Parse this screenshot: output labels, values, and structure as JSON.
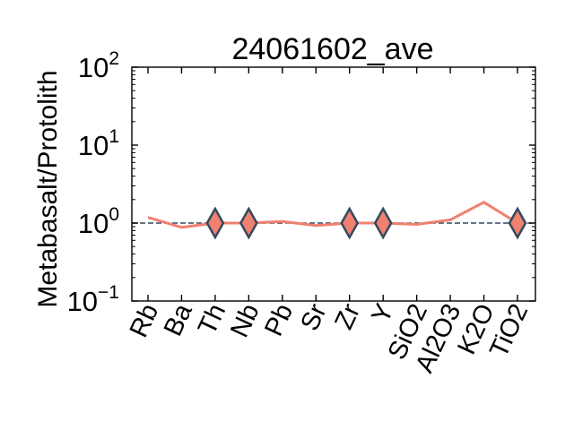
{
  "chart_data": {
    "type": "line",
    "title": "24061602_ave",
    "xlabel": "",
    "ylabel": "Metabasalt/Protolith",
    "yscale": "log",
    "ylim": [
      0.1,
      100
    ],
    "y_ticks": [
      {
        "value": 0.1,
        "base": "10",
        "exp": "−1"
      },
      {
        "value": 1,
        "base": "10",
        "exp": "0"
      },
      {
        "value": 10,
        "base": "10",
        "exp": "1"
      },
      {
        "value": 100,
        "base": "10",
        "exp": "2"
      }
    ],
    "categories": [
      "Rb",
      "Ba",
      "Th",
      "Nb",
      "Pb",
      "Sr",
      "Zr",
      "Y",
      "SiO2",
      "Al2O3",
      "K2O",
      "TiO2"
    ],
    "series": [
      {
        "values": [
          1.18,
          0.88,
          1.0,
          1.0,
          1.05,
          0.93,
          1.0,
          1.0,
          0.96,
          1.1,
          1.85,
          1.0
        ]
      }
    ],
    "immobile_markers": [
      "Th",
      "Nb",
      "Zr",
      "Y",
      "TiO2"
    ],
    "reference_line": 1,
    "colors": {
      "line": "#f08070",
      "marker_fill": "#f08070",
      "marker_edge": "#34495e",
      "reference": "#34495e"
    },
    "grid": false,
    "legend": "none"
  }
}
